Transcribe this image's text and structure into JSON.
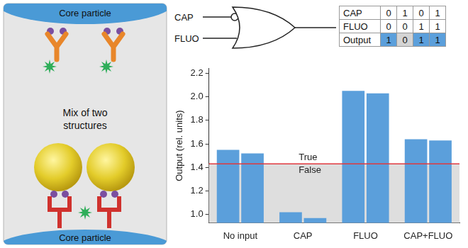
{
  "chart_data": {
    "type": "bar",
    "categories": [
      "No input",
      "CAP",
      "FLUO",
      "CAP+FLUO"
    ],
    "series": [
      {
        "color": "#5b9fdb",
        "values": [
          1.55,
          1.02,
          2.05,
          1.64
        ]
      },
      {
        "color": "#5b9fdb",
        "values": [
          1.52,
          0.97,
          2.03,
          1.63
        ]
      }
    ],
    "y_label": "Output (rel. units)",
    "ylim": [
      0.93,
      2.24
    ],
    "yticks": [
      {
        "value": 1,
        "label": "1.0"
      },
      1.2,
      1.4,
      1.6,
      1.8,
      {
        "value": 2,
        "label": "2.0"
      },
      2.2
    ],
    "grid": false,
    "threshold": {
      "value": 1.43,
      "color": "#e0393e",
      "label_above": "True",
      "label_below": "False"
    }
  },
  "diagram": {
    "top_label": "Core particle",
    "middle_label": "Mix of two structures",
    "bottom_label": "Core particle"
  },
  "gate": {
    "inputs": [
      "CAP",
      "FLUO"
    ],
    "inverted_input": "CAP"
  },
  "truth_table": {
    "rows": [
      {
        "label": "CAP",
        "values": [
          0,
          1,
          0,
          1
        ]
      },
      {
        "label": "FLUO",
        "values": [
          0,
          0,
          1,
          1
        ]
      },
      {
        "label": "Output",
        "values": [
          1,
          0,
          1,
          1
        ],
        "colors": [
          "#5b9fdb",
          "#d4d4d4",
          "#5b9fdb",
          "#5b9fdb"
        ]
      }
    ]
  }
}
